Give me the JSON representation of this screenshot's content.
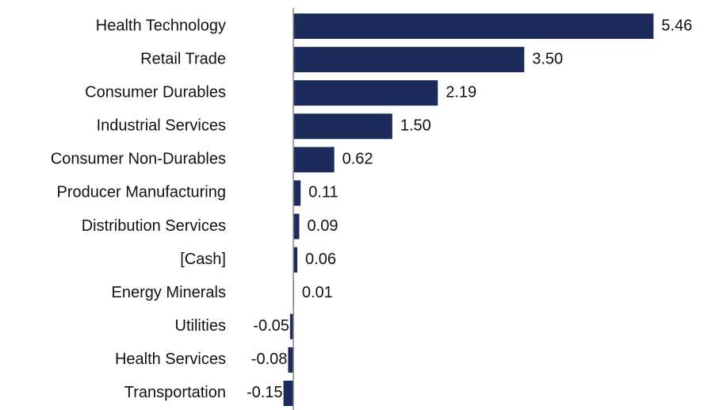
{
  "chart_data": {
    "type": "hbar",
    "categories": [
      "Health Technology",
      "Retail Trade",
      "Consumer Durables",
      "Industrial Services",
      "Consumer Non-Durables",
      "Producer Manufacturing",
      "Distribution Services",
      "[Cash]",
      "Energy Minerals",
      "Utilities",
      "Health Services",
      "Transportation"
    ],
    "values": [
      5.46,
      3.5,
      2.19,
      1.5,
      0.62,
      0.11,
      0.09,
      0.06,
      0.01,
      -0.05,
      -0.08,
      -0.15
    ],
    "value_labels": [
      "5.46",
      "3.50",
      "2.19",
      "1.50",
      "0.62",
      "0.11",
      "0.09",
      "0.06",
      "0.01",
      "-0.05",
      "-0.08",
      "-0.15"
    ],
    "color": "#1c2a5c",
    "xlim": [
      -0.2,
      5.8
    ]
  }
}
